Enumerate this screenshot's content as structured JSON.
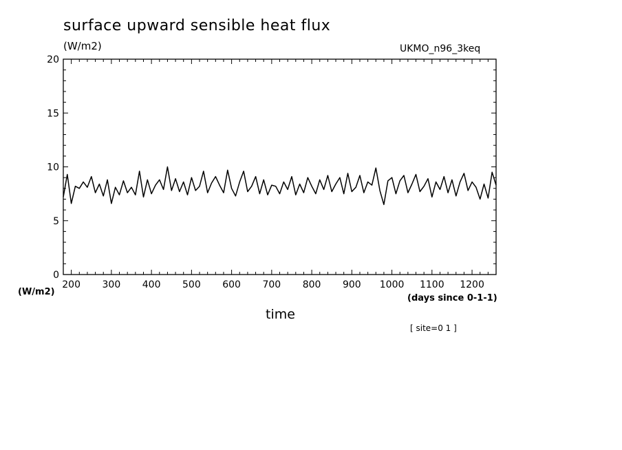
{
  "chart_data": {
    "type": "line",
    "title": "surface upward sensible heat flux",
    "ylabel_units_top": "(W/m2)",
    "ylabel_units_left": "(W/m2)",
    "model": "UKMO_n96_3keq",
    "xlabel": "time",
    "xunits": "(days since 0-1-1)",
    "annotation": "[ site=0 1 ]",
    "xlim": [
      180,
      1260
    ],
    "ylim": [
      0,
      20
    ],
    "xticks": [
      200,
      300,
      400,
      500,
      600,
      700,
      800,
      900,
      1000,
      1100,
      1200
    ],
    "yticks": [
      0,
      5,
      10,
      15,
      20
    ],
    "grid": false,
    "legend": "none",
    "line_color": "#000000",
    "series": [
      {
        "x": [
          180,
          190,
          200,
          210,
          220,
          230,
          240,
          250,
          260,
          270,
          280,
          290,
          300,
          310,
          320,
          330,
          340,
          350,
          360,
          370,
          380,
          390,
          400,
          410,
          420,
          430,
          440,
          450,
          460,
          470,
          480,
          490,
          500,
          510,
          520,
          530,
          540,
          550,
          560,
          570,
          580,
          590,
          600,
          610,
          620,
          630,
          640,
          650,
          660,
          670,
          680,
          690,
          700,
          710,
          720,
          730,
          740,
          750,
          760,
          770,
          780,
          790,
          800,
          810,
          820,
          830,
          840,
          850,
          860,
          870,
          880,
          890,
          900,
          910,
          920,
          930,
          940,
          950,
          960,
          970,
          980,
          990,
          1000,
          1010,
          1020,
          1030,
          1040,
          1050,
          1060,
          1070,
          1080,
          1090,
          1100,
          1110,
          1120,
          1130,
          1140,
          1150,
          1160,
          1170,
          1180,
          1190,
          1200,
          1210,
          1220,
          1230,
          1240,
          1250,
          1260
        ],
        "y": [
          7.2,
          9.3,
          6.6,
          8.2,
          8.0,
          8.6,
          8.1,
          9.1,
          7.6,
          8.4,
          7.3,
          8.8,
          6.6,
          8.1,
          7.4,
          8.7,
          7.6,
          8.1,
          7.4,
          9.6,
          7.2,
          8.8,
          7.5,
          8.3,
          8.8,
          7.9,
          10.0,
          7.8,
          8.9,
          7.7,
          8.6,
          7.4,
          9.0,
          7.8,
          8.2,
          9.6,
          7.6,
          8.5,
          9.1,
          8.3,
          7.6,
          9.7,
          8.0,
          7.3,
          8.6,
          9.6,
          7.7,
          8.2,
          9.1,
          7.5,
          8.8,
          7.4,
          8.3,
          8.2,
          7.5,
          8.6,
          7.9,
          9.1,
          7.4,
          8.4,
          7.6,
          9.0,
          8.2,
          7.5,
          8.8,
          7.9,
          9.2,
          7.7,
          8.4,
          9.0,
          7.5,
          9.4,
          7.7,
          8.1,
          9.2,
          7.6,
          8.6,
          8.3,
          9.9,
          7.8,
          6.5,
          8.7,
          9.0,
          7.5,
          8.7,
          9.2,
          7.6,
          8.4,
          9.3,
          7.7,
          8.2,
          8.9,
          7.2,
          8.6,
          7.9,
          9.1,
          7.6,
          8.8,
          7.3,
          8.6,
          9.4,
          7.8,
          8.6,
          8.1,
          7.0,
          8.4,
          7.1,
          9.5,
          8.3
        ]
      }
    ]
  }
}
